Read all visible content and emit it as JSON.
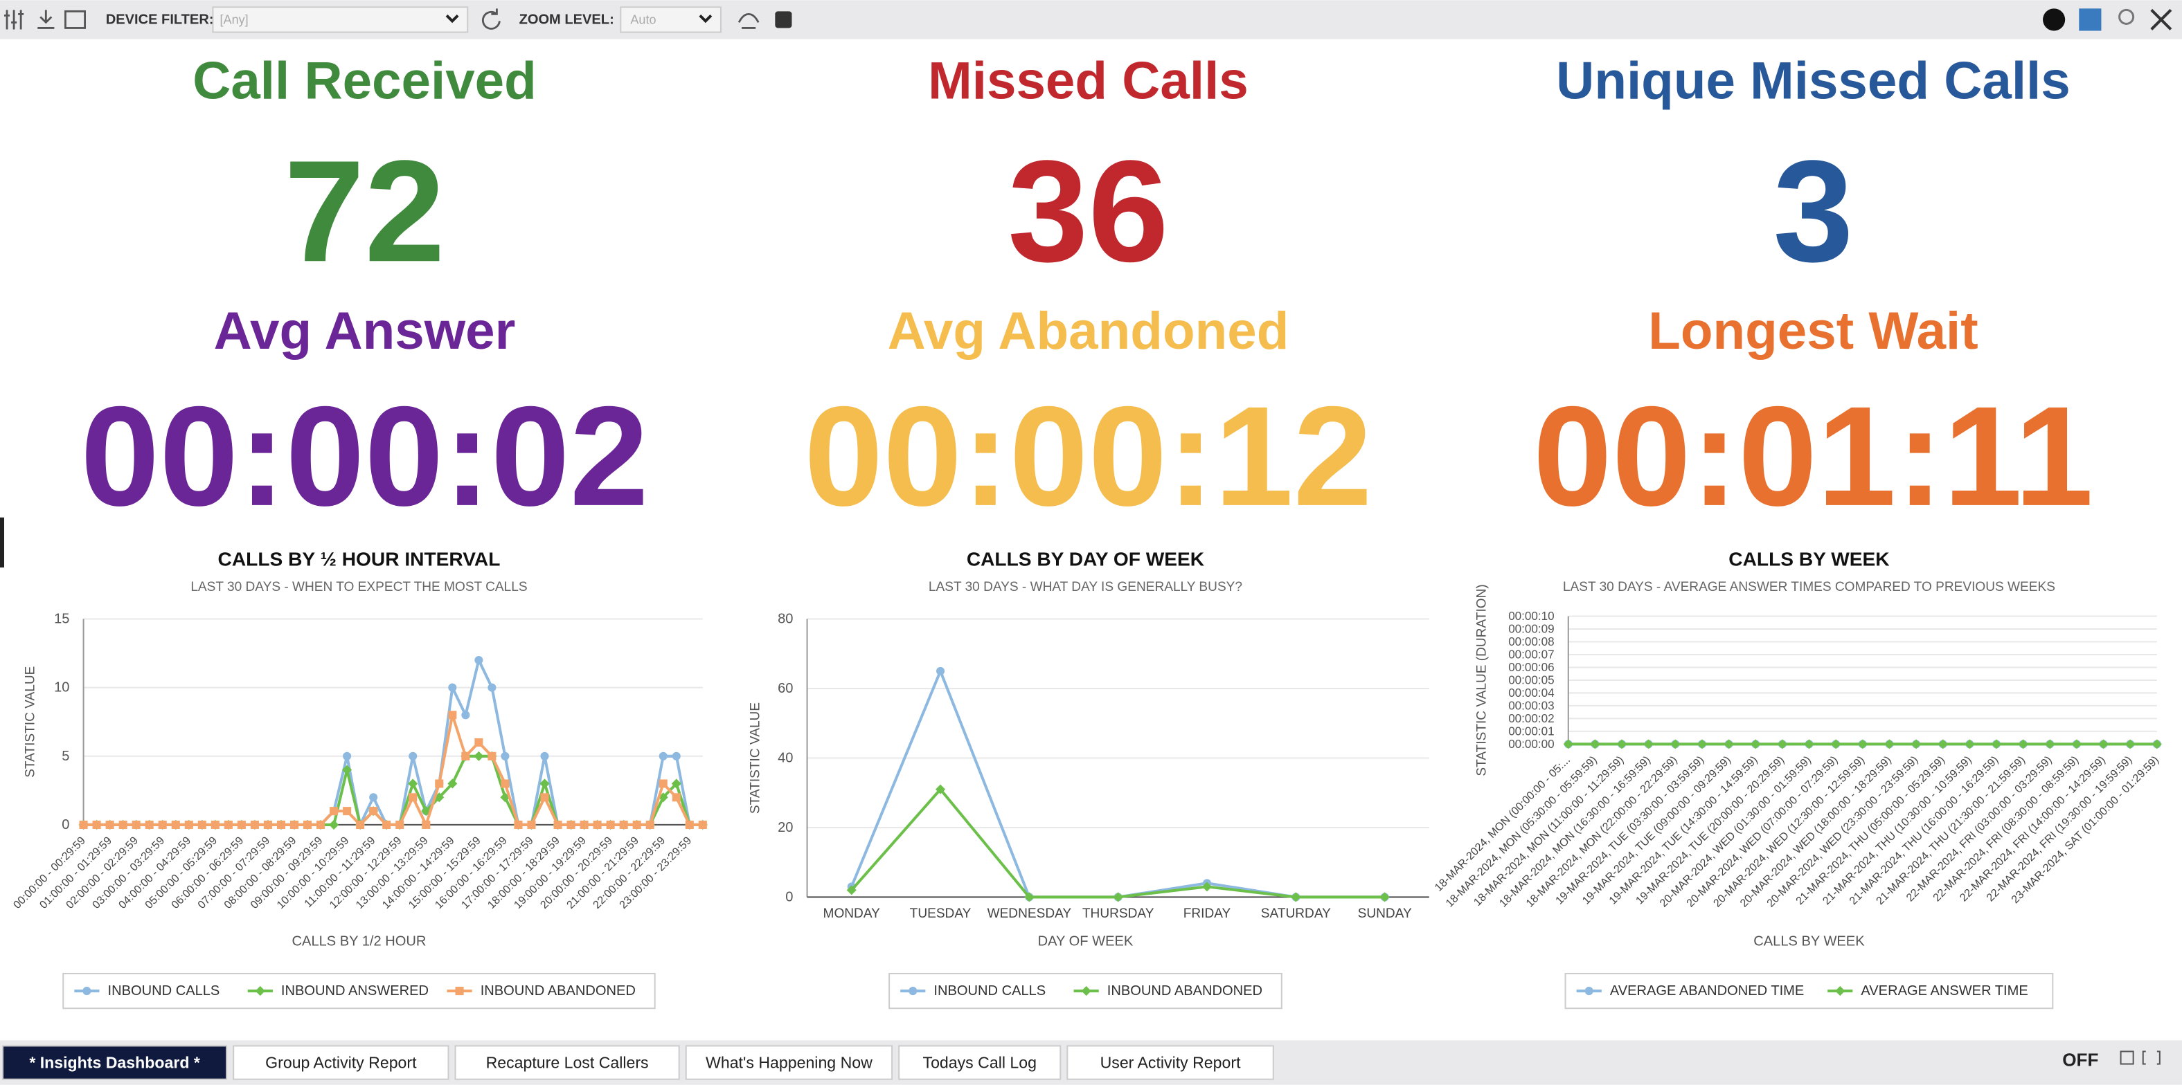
{
  "toolbar": {
    "device_filter_label": "DEVICE FILTER:",
    "device_filter_value": "[Any]",
    "zoom_label": "ZOOM LEVEL:",
    "zoom_value": "Auto"
  },
  "kpis": [
    {
      "label": "Call Received",
      "value": 72,
      "color": "#3f8a3c"
    },
    {
      "label": "Missed Calls",
      "value": 36,
      "color": "#c0282e"
    },
    {
      "label": "Unique Missed Calls",
      "value": 3,
      "color": "#27589a"
    },
    {
      "label": "Avg Answer",
      "value": "00:00:02",
      "color": "#6a2597"
    },
    {
      "label": "Avg Abandoned",
      "value": "00:00:12",
      "color": "#f4bd4e"
    },
    {
      "label": "Longest Wait",
      "value": "00:01:11",
      "color": "#e8712f"
    }
  ],
  "chart_data": [
    {
      "type": "line",
      "title": "CALLS BY ½ HOUR INTERVAL",
      "subtitle": "LAST 30 DAYS - WHEN TO EXPECT THE MOST CALLS",
      "x_label": "CALLS BY 1/2 HOUR",
      "y_label": "STATISTIC VALUE",
      "categories": [
        "00:00:00 - 00:29:59",
        null,
        "01:00:00 - 01:29:59",
        null,
        "02:00:00 - 02:29:59",
        null,
        "03:00:00 - 03:29:59",
        null,
        "04:00:00 - 04:29:59",
        null,
        "05:00:00 - 05:29:59",
        null,
        "06:00:00 - 06:29:59",
        null,
        "07:00:00 - 07:29:59",
        null,
        "08:00:00 - 08:29:59",
        null,
        "09:00:00 - 09:29:59",
        null,
        "10:00:00 - 10:29:59",
        null,
        "11:00:00 - 11:29:59",
        null,
        "12:00:00 - 12:29:59",
        null,
        "13:00:00 - 13:29:59",
        null,
        "14:00:00 - 14:29:59",
        null,
        "15:00:00 - 15:29:59",
        null,
        "16:00:00 - 16:29:59",
        null,
        "17:00:00 - 17:29:59",
        null,
        "18:00:00 - 18:29:59",
        null,
        "19:00:00 - 19:29:59",
        null,
        "20:00:00 - 20:29:59",
        null,
        "21:00:00 - 21:29:59",
        null,
        "22:00:00 - 22:29:59",
        null,
        "23:00:00 - 23:29:59",
        null
      ],
      "series": [
        {
          "name": "INBOUND CALLS",
          "color": "#8db8e0",
          "marker": "circle",
          "values": [
            0,
            0,
            0,
            0,
            0,
            0,
            0,
            0,
            0,
            0,
            0,
            0,
            0,
            0,
            0,
            0,
            0,
            0,
            0,
            1,
            5,
            0,
            2,
            0,
            0,
            5,
            1,
            3,
            10,
            8,
            12,
            10,
            5,
            0,
            0,
            5,
            0,
            0,
            0,
            0,
            0,
            0,
            0,
            0,
            5,
            5,
            0,
            0
          ]
        },
        {
          "name": "INBOUND ANSWERED",
          "color": "#6cc04a",
          "marker": "diamond",
          "values": [
            0,
            0,
            0,
            0,
            0,
            0,
            0,
            0,
            0,
            0,
            0,
            0,
            0,
            0,
            0,
            0,
            0,
            0,
            0,
            0,
            4,
            0,
            1,
            0,
            0,
            3,
            1,
            2,
            3,
            5,
            5,
            5,
            2,
            0,
            0,
            3,
            0,
            0,
            0,
            0,
            0,
            0,
            0,
            0,
            2,
            3,
            0,
            0
          ]
        },
        {
          "name": "INBOUND ABANDONED",
          "color": "#f4a46a",
          "marker": "square",
          "values": [
            0,
            0,
            0,
            0,
            0,
            0,
            0,
            0,
            0,
            0,
            0,
            0,
            0,
            0,
            0,
            0,
            0,
            0,
            0,
            1,
            1,
            0,
            1,
            0,
            0,
            2,
            0,
            3,
            8,
            5,
            6,
            5,
            3,
            0,
            0,
            2,
            0,
            0,
            0,
            0,
            0,
            0,
            0,
            0,
            3,
            2,
            0,
            0
          ]
        }
      ],
      "ylim": [
        0,
        15
      ],
      "yticks": [
        0,
        5,
        10,
        15
      ],
      "grid": true,
      "legend": "bottom"
    },
    {
      "type": "line",
      "title": "CALLS BY DAY OF WEEK",
      "subtitle": "LAST 30 DAYS - WHAT DAY IS GENERALLY BUSY?",
      "x_label": "DAY OF WEEK",
      "y_label": "STATISTIC VALUE",
      "categories": [
        "MONDAY",
        "TUESDAY",
        "WEDNESDAY",
        "THURSDAY",
        "FRIDAY",
        "SATURDAY",
        "SUNDAY"
      ],
      "series": [
        {
          "name": "INBOUND CALLS",
          "color": "#8db8e0",
          "marker": "circle",
          "values": [
            3,
            65,
            0,
            0,
            4,
            0,
            0
          ]
        },
        {
          "name": "INBOUND ABANDONED",
          "color": "#6cc04a",
          "marker": "diamond",
          "values": [
            2,
            31,
            0,
            0,
            3,
            0,
            0
          ]
        }
      ],
      "ylim": [
        0,
        80
      ],
      "yticks": [
        0,
        20,
        40,
        60,
        80
      ],
      "grid": true,
      "legend": "bottom"
    },
    {
      "type": "line",
      "title": "CALLS BY WEEK",
      "subtitle": "LAST 30 DAYS - AVERAGE ANSWER TIMES COMPARED TO PREVIOUS WEEKS",
      "x_label": "CALLS BY WEEK",
      "y_label": "STATISTIC VALUE (DURATION)",
      "categories": [
        "18-MAR-2024, MON (00:00:00 - 05:...",
        "18-MAR-2024, MON (05:30:00 - 05:59:59)",
        "18-MAR-2024, MON (11:00:00 - 11:29:59)",
        "18-MAR-2024, MON (16:30:00 - 16:59:59)",
        "18-MAR-2024, MON (22:00:00 - 22:29:59)",
        "19-MAR-2024, TUE (03:30:00 - 03:59:59)",
        "19-MAR-2024, TUE (09:00:00 - 09:29:59)",
        "19-MAR-2024, TUE (14:30:00 - 14:59:59)",
        "19-MAR-2024, TUE (20:00:00 - 20:29:59)",
        "20-MAR-2024, WED (01:30:00 - 01:59:59)",
        "20-MAR-2024, WED (07:00:00 - 07:29:59)",
        "20-MAR-2024, WED (12:30:00 - 12:59:59)",
        "20-MAR-2024, WED (18:00:00 - 18:29:59)",
        "20-MAR-2024, WED (23:30:00 - 23:59:59)",
        "21-MAR-2024, THU (05:00:00 - 05:29:59)",
        "21-MAR-2024, THU (10:30:00 - 10:59:59)",
        "21-MAR-2024, THU (16:00:00 - 16:29:59)",
        "21-MAR-2024, THU (21:30:00 - 21:59:59)",
        "22-MAR-2024, FRI (03:00:00 - 03:29:59)",
        "22-MAR-2024, FRI (08:30:00 - 08:59:59)",
        "22-MAR-2024, FRI (14:00:00 - 14:29:59)",
        "22-MAR-2024, FRI (19:30:00 - 19:59:59)",
        "23-MAR-2024, SAT (01:00:00 - 01:29:59)"
      ],
      "series": [
        {
          "name": "AVERAGE ABANDONED TIME",
          "color": "#8db8e0",
          "marker": "circle",
          "values": [
            0,
            0,
            0,
            0,
            0,
            0,
            0,
            0,
            0,
            0,
            0,
            0,
            0,
            0,
            0,
            0,
            0,
            0,
            0,
            0,
            0,
            0,
            0
          ]
        },
        {
          "name": "AVERAGE ANSWER TIME",
          "color": "#6cc04a",
          "marker": "diamond",
          "values": [
            0,
            0,
            0,
            0,
            0,
            0,
            0,
            0,
            0,
            0,
            0,
            0,
            0,
            0,
            0,
            0,
            0,
            0,
            0,
            0,
            0,
            0,
            0
          ]
        }
      ],
      "ylim": [
        0,
        10
      ],
      "yticks": [
        {
          "value": 0,
          "label": "00:00:00"
        },
        {
          "value": 1,
          "label": "00:00:01"
        },
        {
          "value": 2,
          "label": "00:00:02"
        },
        {
          "value": 3,
          "label": "00:00:03"
        },
        {
          "value": 4,
          "label": "00:00:04"
        },
        {
          "value": 5,
          "label": "00:00:05"
        },
        {
          "value": 6,
          "label": "00:00:06"
        },
        {
          "value": 7,
          "label": "00:00:07"
        },
        {
          "value": 8,
          "label": "00:00:08"
        },
        {
          "value": 9,
          "label": "00:00:09"
        },
        {
          "value": 10,
          "label": "00:00:10"
        }
      ],
      "grid": true,
      "legend": "bottom"
    }
  ],
  "tabs": [
    "* Insights Dashboard *",
    "Group Activity Report",
    "Recapture Lost Callers",
    "What's Happening Now",
    "Todays Call Log",
    "User Activity Report"
  ],
  "status": "OFF"
}
